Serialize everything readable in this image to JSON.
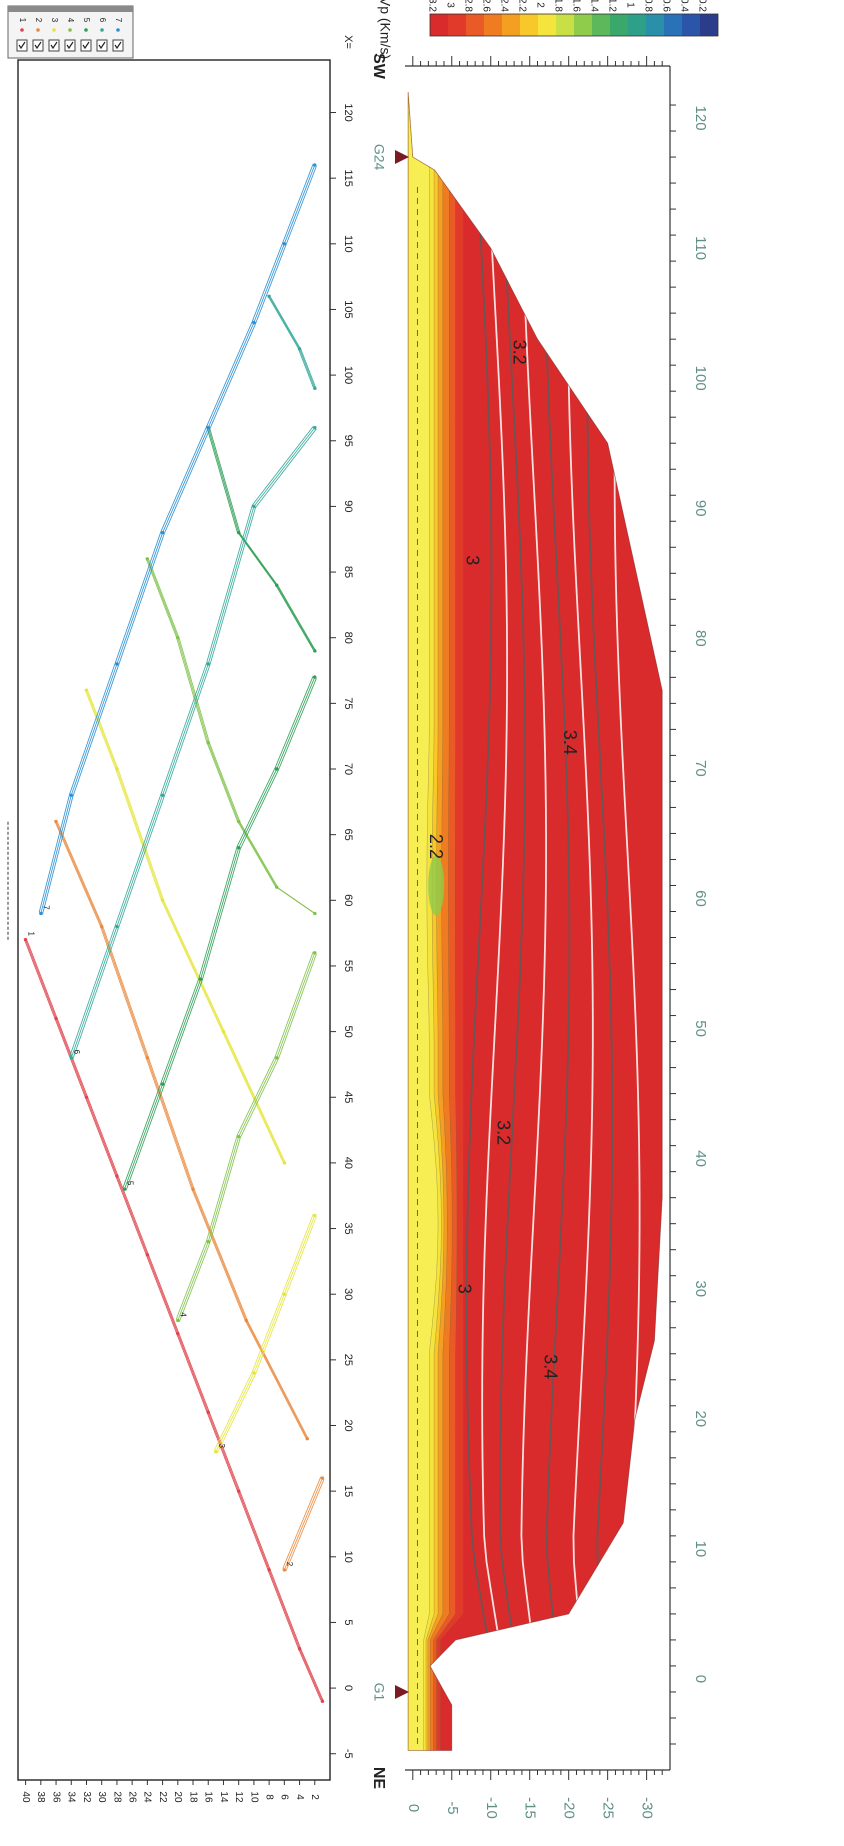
{
  "chart_data": [
    {
      "type": "line",
      "title": "",
      "xlabel": "X=",
      "ylabel": "",
      "x_ticks": [
        "-5",
        "0",
        "5",
        "10",
        "15",
        "20",
        "25",
        "30",
        "35",
        "40",
        "45",
        "50",
        "55",
        "60",
        "65",
        "70",
        "75",
        "80",
        "85",
        "90",
        "95",
        "100",
        "105",
        "110",
        "115",
        "120"
      ],
      "y_ticks": [
        "2",
        "4",
        "6",
        "8",
        "10",
        "12",
        "14",
        "16",
        "18",
        "20",
        "22",
        "24",
        "26",
        "28",
        "30",
        "32",
        "34",
        "36",
        "38",
        "40"
      ],
      "xlim": [
        -7,
        124
      ],
      "ylim": [
        0,
        41
      ],
      "legend": {
        "placement": "top-right",
        "entries": [
          "1",
          "2",
          "3",
          "4",
          "5",
          "6",
          "7"
        ]
      },
      "shot_labels": [
        "1",
        "2",
        "3",
        "4",
        "5",
        "6",
        "7"
      ],
      "series": [
        {
          "name": "1",
          "color": "#e0444c",
          "points": [
            [
              -1,
              1
            ],
            [
              3,
              4
            ],
            [
              9,
              8
            ],
            [
              15,
              12
            ],
            [
              21,
              16
            ],
            [
              27,
              20
            ],
            [
              33,
              24
            ],
            [
              39,
              28
            ],
            [
              45,
              32
            ],
            [
              51,
              36
            ],
            [
              57,
              40
            ]
          ]
        },
        {
          "name": "2",
          "color": "#ea8a3e",
          "points": [
            [
              9,
              6
            ],
            [
              16,
              1
            ]
          ]
        },
        {
          "name": "2",
          "color": "#ea8a3e",
          "points": [
            [
              66,
              36
            ],
            [
              58,
              30
            ],
            [
              48,
              24
            ],
            [
              38,
              18
            ],
            [
              28,
              11
            ],
            [
              19,
              3
            ]
          ]
        },
        {
          "name": "3",
          "color": "#e6e43c",
          "points": [
            [
              18,
              15
            ],
            [
              24,
              10
            ],
            [
              30,
              6
            ],
            [
              36,
              2
            ]
          ]
        },
        {
          "name": "3",
          "color": "#e6e43c",
          "points": [
            [
              76,
              32
            ],
            [
              70,
              28
            ],
            [
              60,
              22
            ],
            [
              50,
              14
            ],
            [
              40,
              6
            ]
          ]
        },
        {
          "name": "4",
          "color": "#7fc24a",
          "points": [
            [
              28,
              20
            ],
            [
              34,
              16
            ],
            [
              42,
              12
            ],
            [
              48,
              7
            ],
            [
              56,
              2
            ]
          ]
        },
        {
          "name": "4",
          "color": "#7fc24a",
          "points": [
            [
              86,
              24
            ],
            [
              80,
              20
            ],
            [
              72,
              16
            ],
            [
              66,
              12
            ],
            [
              61,
              7
            ],
            [
              59,
              2
            ]
          ]
        },
        {
          "name": "5",
          "color": "#2f9e56",
          "points": [
            [
              38,
              27
            ],
            [
              46,
              22
            ],
            [
              54,
              17
            ],
            [
              64,
              12
            ],
            [
              70,
              7
            ],
            [
              77,
              2
            ]
          ]
        },
        {
          "name": "5",
          "color": "#2f9e56",
          "points": [
            [
              96,
              16
            ],
            [
              88,
              12
            ],
            [
              84,
              7
            ],
            [
              79,
              2
            ]
          ]
        },
        {
          "name": "6",
          "color": "#33a99a",
          "points": [
            [
              48,
              34
            ],
            [
              58,
              28
            ],
            [
              68,
              22
            ],
            [
              78,
              16
            ],
            [
              90,
              10
            ],
            [
              96,
              2
            ]
          ]
        },
        {
          "name": "6",
          "color": "#33a99a",
          "points": [
            [
              106,
              8
            ],
            [
              102,
              4
            ],
            [
              99,
              2
            ]
          ]
        },
        {
          "name": "7",
          "color": "#2a8fd3",
          "points": [
            [
              116,
              2
            ],
            [
              110,
              6
            ],
            [
              104,
              10
            ],
            [
              96,
              16
            ],
            [
              88,
              22
            ],
            [
              78,
              28
            ],
            [
              68,
              34
            ],
            [
              59,
              38
            ]
          ]
        }
      ]
    },
    {
      "type": "heatmap",
      "title": "",
      "xlabel": "",
      "ylabel": "",
      "x_ticks": [
        "0",
        "10",
        "20",
        "30",
        "40",
        "50",
        "60",
        "70",
        "80",
        "90",
        "100",
        "110",
        "120"
      ],
      "y_ticks": [
        "0",
        "-5",
        "-10",
        "-15",
        "-20",
        "-25",
        "-30"
      ],
      "xlim": [
        -7,
        124
      ],
      "ylim": [
        -33,
        1
      ],
      "value_label": "Vp (Km/s)",
      "colorbar_ticks": [
        "3.2",
        "3",
        "2.8",
        "2.6",
        "2.4",
        "2.2",
        "2",
        "1.8",
        "1.6",
        "1.4",
        "1.2",
        "1",
        "0.8",
        "0.6",
        "0.4",
        "0.2"
      ],
      "colorbar_colors": [
        "#d92b2b",
        "#e23a2a",
        "#ea5a26",
        "#f07c22",
        "#f59f22",
        "#f8c72a",
        "#f4e43c",
        "#c9df46",
        "#8fcc4c",
        "#5cb85a",
        "#3aa86a",
        "#2ea08a",
        "#2a8fa8",
        "#2a72b8",
        "#2a55a8",
        "#2a3c8a"
      ],
      "left_label": "NE",
      "right_label": "SW",
      "geophones": [
        "G1",
        "G24"
      ],
      "contour_labels": [
        {
          "text": "2.2",
          "x": 64,
          "y": -2.8
        },
        {
          "text": "3",
          "x": 86,
          "y": -7.5
        },
        {
          "text": "3",
          "x": 30,
          "y": -6.5
        },
        {
          "text": "3.2",
          "x": 102,
          "y": -13.5
        },
        {
          "text": "3.2",
          "x": 42,
          "y": -11.5
        },
        {
          "text": "3.4",
          "x": 72,
          "y": -20
        },
        {
          "text": "3.4",
          "x": 24,
          "y": -17.5
        }
      ]
    }
  ]
}
